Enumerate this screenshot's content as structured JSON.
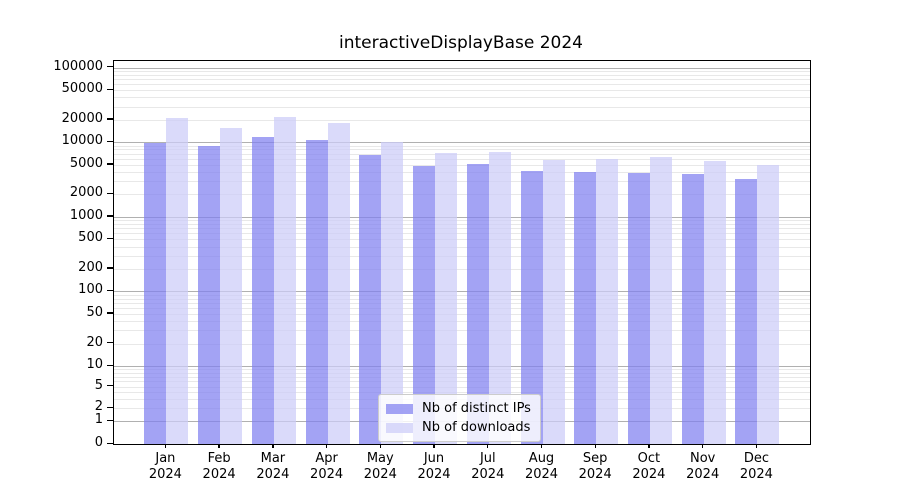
{
  "chart_data": {
    "type": "bar",
    "title": "interactiveDisplayBase 2024",
    "categories": [
      "Jan",
      "Feb",
      "Mar",
      "Apr",
      "May",
      "Jun",
      "Jul",
      "Aug",
      "Sep",
      "Oct",
      "Nov",
      "Dec"
    ],
    "category_year": "2024",
    "series": [
      {
        "name": "Nb of distinct IPs",
        "color": "#7f7ff0",
        "alpha": 0.72,
        "values": [
          9900,
          8800,
          11700,
          10800,
          6800,
          4800,
          5100,
          4100,
          4000,
          3900,
          3800,
          3200
        ]
      },
      {
        "name": "Nb of downloads",
        "color": "#ccccf8",
        "alpha": 0.72,
        "values": [
          21000,
          15500,
          21700,
          18000,
          10000,
          7200,
          7300,
          5800,
          5900,
          6300,
          5600,
          4900
        ]
      }
    ],
    "yscale": "symlog",
    "yticks": [
      0,
      1,
      2,
      5,
      10,
      20,
      50,
      100,
      200,
      500,
      1000,
      2000,
      5000,
      10000,
      20000,
      50000,
      100000
    ],
    "ylim": [
      0,
      122000
    ],
    "grid": true,
    "grid_major_color": "#b0b0b0",
    "grid_minor_color": "#e8e8e8",
    "legend_position": "lower center"
  }
}
